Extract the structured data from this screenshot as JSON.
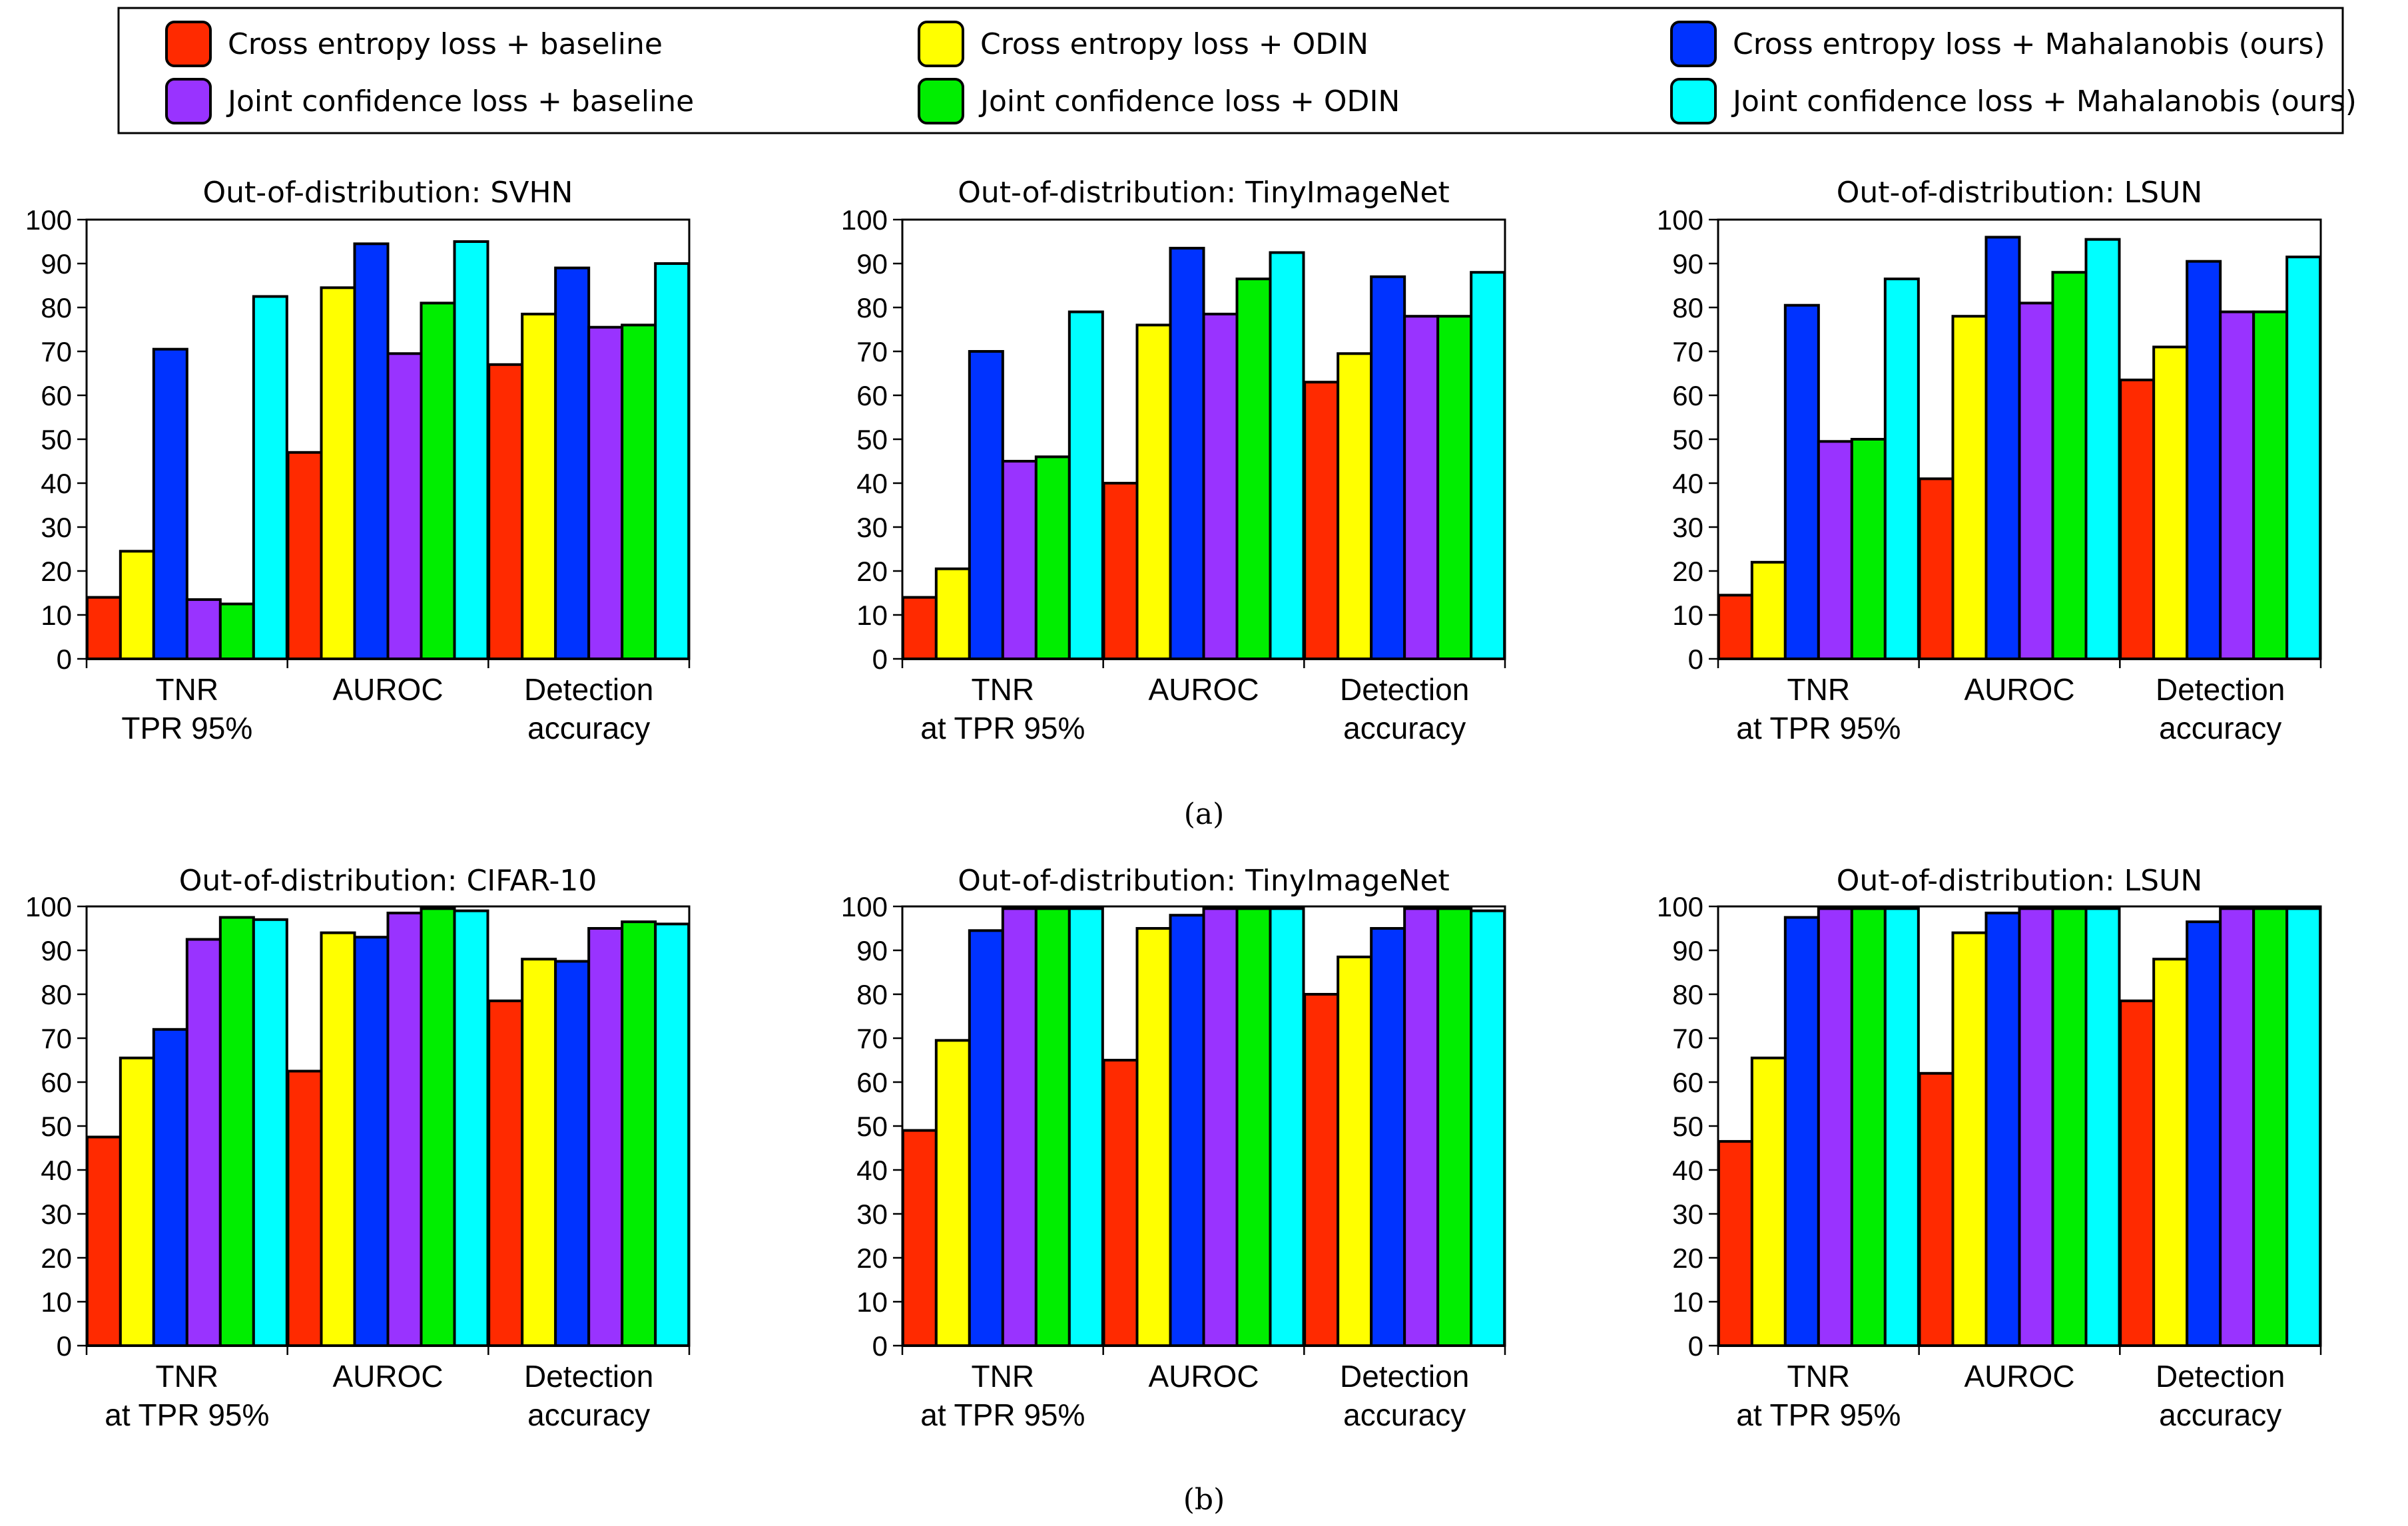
{
  "legend": {
    "items": [
      {
        "label": "Cross entropy loss + baseline",
        "color": "#ff2a00"
      },
      {
        "label": "Joint confidence loss + baseline",
        "color": "#9933ff"
      },
      {
        "label": "Cross entropy loss + ODIN",
        "color": "#ffff00"
      },
      {
        "label": "Joint confidence loss + ODIN",
        "color": "#00ee00"
      },
      {
        "label": "Cross entropy loss + Mahalanobis (ours)",
        "color": "#0033ff"
      },
      {
        "label": "Joint confidence loss + Mahalanobis (ours)",
        "color": "#00ffff"
      }
    ]
  },
  "captions": [
    "(a)",
    "(b)"
  ],
  "chart_data": [
    {
      "type": "bar",
      "title": "Out-of-distribution: SVHN",
      "categories": [
        [
          "TNR",
          "TPR 95%"
        ],
        [
          "AUROC"
        ],
        [
          "Detection",
          "accuracy"
        ]
      ],
      "ylim": [
        0,
        100
      ],
      "yticks": [
        0,
        10,
        20,
        30,
        40,
        50,
        60,
        70,
        80,
        90,
        100
      ],
      "series": [
        {
          "name": "Cross entropy loss + baseline",
          "values": [
            14,
            47,
            67
          ]
        },
        {
          "name": "Cross entropy loss + ODIN",
          "values": [
            24.5,
            84.5,
            78.5
          ]
        },
        {
          "name": "Cross entropy loss + Mahalanobis (ours)",
          "values": [
            70.5,
            94.5,
            89
          ]
        },
        {
          "name": "Joint confidence loss + baseline",
          "values": [
            13.5,
            69.5,
            75.5
          ]
        },
        {
          "name": "Joint confidence loss + ODIN",
          "values": [
            12.5,
            81,
            76
          ]
        },
        {
          "name": "Joint confidence loss + Mahalanobis (ours)",
          "values": [
            82.5,
            95,
            90
          ]
        }
      ]
    },
    {
      "type": "bar",
      "title": "Out-of-distribution: TinyImageNet",
      "categories": [
        [
          "TNR",
          "at TPR 95%"
        ],
        [
          "AUROC"
        ],
        [
          "Detection",
          "accuracy"
        ]
      ],
      "ylim": [
        0,
        100
      ],
      "yticks": [
        0,
        10,
        20,
        30,
        40,
        50,
        60,
        70,
        80,
        90,
        100
      ],
      "series": [
        {
          "name": "Cross entropy loss + baseline",
          "values": [
            14,
            40,
            63
          ]
        },
        {
          "name": "Cross entropy loss + ODIN",
          "values": [
            20.5,
            76,
            69.5
          ]
        },
        {
          "name": "Cross entropy loss + Mahalanobis (ours)",
          "values": [
            70,
            93.5,
            87
          ]
        },
        {
          "name": "Joint confidence loss + baseline",
          "values": [
            45,
            78.5,
            78
          ]
        },
        {
          "name": "Joint confidence loss + ODIN",
          "values": [
            46,
            86.5,
            78
          ]
        },
        {
          "name": "Joint confidence loss + Mahalanobis (ours)",
          "values": [
            79,
            92.5,
            88
          ]
        }
      ]
    },
    {
      "type": "bar",
      "title": "Out-of-distribution: LSUN",
      "categories": [
        [
          "TNR",
          "at TPR 95%"
        ],
        [
          "AUROC"
        ],
        [
          "Detection",
          "accuracy"
        ]
      ],
      "ylim": [
        0,
        100
      ],
      "yticks": [
        0,
        10,
        20,
        30,
        40,
        50,
        60,
        70,
        80,
        90,
        100
      ],
      "series": [
        {
          "name": "Cross entropy loss + baseline",
          "values": [
            14.5,
            41,
            63.5
          ]
        },
        {
          "name": "Cross entropy loss + ODIN",
          "values": [
            22,
            78,
            71
          ]
        },
        {
          "name": "Cross entropy loss + Mahalanobis (ours)",
          "values": [
            80.5,
            96,
            90.5
          ]
        },
        {
          "name": "Joint confidence loss + baseline",
          "values": [
            49.5,
            81,
            79
          ]
        },
        {
          "name": "Joint confidence loss + ODIN",
          "values": [
            50,
            88,
            79
          ]
        },
        {
          "name": "Joint confidence loss + Mahalanobis (ours)",
          "values": [
            86.5,
            95.5,
            91.5
          ]
        }
      ]
    },
    {
      "type": "bar",
      "title": "Out-of-distribution: CIFAR-10",
      "categories": [
        [
          "TNR",
          "at TPR 95%"
        ],
        [
          "AUROC"
        ],
        [
          "Detection",
          "accuracy"
        ]
      ],
      "ylim": [
        0,
        100
      ],
      "yticks": [
        0,
        10,
        20,
        30,
        40,
        50,
        60,
        70,
        80,
        90,
        100
      ],
      "series": [
        {
          "name": "Cross entropy loss + baseline",
          "values": [
            47.5,
            62.5,
            78.5
          ]
        },
        {
          "name": "Cross entropy loss + ODIN",
          "values": [
            65.5,
            94,
            88
          ]
        },
        {
          "name": "Cross entropy loss + Mahalanobis (ours)",
          "values": [
            72,
            93,
            87.5
          ]
        },
        {
          "name": "Joint confidence loss + baseline",
          "values": [
            92.5,
            98.5,
            95
          ]
        },
        {
          "name": "Joint confidence loss + ODIN",
          "values": [
            97.5,
            99.5,
            96.5
          ]
        },
        {
          "name": "Joint confidence loss + Mahalanobis (ours)",
          "values": [
            97,
            99,
            96
          ]
        }
      ]
    },
    {
      "type": "bar",
      "title": "Out-of-distribution: TinyImageNet",
      "categories": [
        [
          "TNR",
          "at TPR 95%"
        ],
        [
          "AUROC"
        ],
        [
          "Detection",
          "accuracy"
        ]
      ],
      "ylim": [
        0,
        100
      ],
      "yticks": [
        0,
        10,
        20,
        30,
        40,
        50,
        60,
        70,
        80,
        90,
        100
      ],
      "series": [
        {
          "name": "Cross entropy loss + baseline",
          "values": [
            49,
            65,
            80
          ]
        },
        {
          "name": "Cross entropy loss + ODIN",
          "values": [
            69.5,
            95,
            88.5
          ]
        },
        {
          "name": "Cross entropy loss + Mahalanobis (ours)",
          "values": [
            94.5,
            98,
            95
          ]
        },
        {
          "name": "Joint confidence loss + baseline",
          "values": [
            99.5,
            99.5,
            99.5
          ]
        },
        {
          "name": "Joint confidence loss + ODIN",
          "values": [
            99.5,
            99.5,
            99.5
          ]
        },
        {
          "name": "Joint confidence loss + Mahalanobis (ours)",
          "values": [
            99.5,
            99.5,
            99
          ]
        }
      ]
    },
    {
      "type": "bar",
      "title": "Out-of-distribution: LSUN",
      "categories": [
        [
          "TNR",
          "at TPR 95%"
        ],
        [
          "AUROC"
        ],
        [
          "Detection",
          "accuracy"
        ]
      ],
      "ylim": [
        0,
        100
      ],
      "yticks": [
        0,
        10,
        20,
        30,
        40,
        50,
        60,
        70,
        80,
        90,
        100
      ],
      "series": [
        {
          "name": "Cross entropy loss + baseline",
          "values": [
            46.5,
            62,
            78.5
          ]
        },
        {
          "name": "Cross entropy loss + ODIN",
          "values": [
            65.5,
            94,
            88
          ]
        },
        {
          "name": "Cross entropy loss + Mahalanobis (ours)",
          "values": [
            97.5,
            98.5,
            96.5
          ]
        },
        {
          "name": "Joint confidence loss + baseline",
          "values": [
            99.5,
            99.5,
            99.5
          ]
        },
        {
          "name": "Joint confidence loss + ODIN",
          "values": [
            99.5,
            99.5,
            99.5
          ]
        },
        {
          "name": "Joint confidence loss + Mahalanobis (ours)",
          "values": [
            99.5,
            99.5,
            99.5
          ]
        }
      ]
    }
  ]
}
